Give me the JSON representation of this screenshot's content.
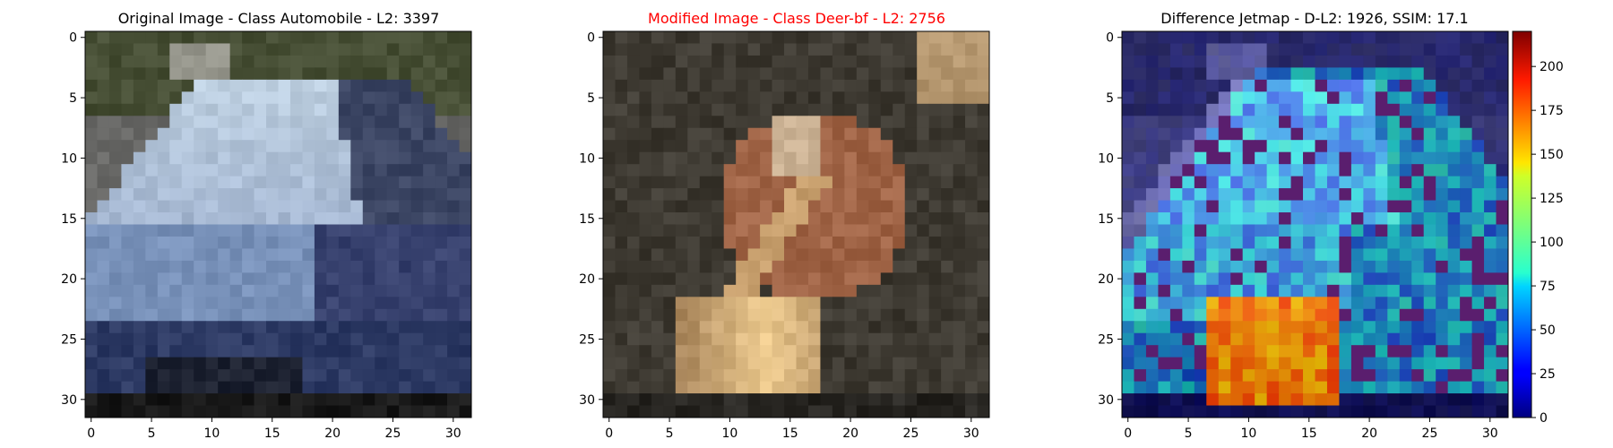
{
  "chart_data": {
    "type": "heatmap",
    "panels": [
      {
        "kind": "image",
        "title": "Original Image - Class Automobile - L2: 3397",
        "title_color": "#000000",
        "image_size": [
          32,
          32
        ],
        "x_ticks": [
          0,
          5,
          10,
          15,
          20,
          25,
          30
        ],
        "y_ticks": [
          0,
          5,
          10,
          15,
          20,
          25,
          30
        ],
        "subject": "blue-gray car, front three-quarter view, gray road background"
      },
      {
        "kind": "image",
        "title": "Modified Image - Class Deer-bf - L2: 2756",
        "title_color": "#ff0000",
        "image_size": [
          32,
          32
        ],
        "x_ticks": [
          0,
          5,
          10,
          15,
          20,
          25,
          30
        ],
        "y_ticks": [
          0,
          5,
          10,
          15,
          20,
          25,
          30
        ],
        "subject": "brown-tan blurred deer-like shape on dark background"
      },
      {
        "kind": "image",
        "title": "Difference Jetmap - D-L2: 1926, SSIM: 17.1",
        "title_color": "#000000",
        "image_size": [
          32,
          32
        ],
        "x_ticks": [
          0,
          5,
          10,
          15,
          20,
          25,
          30
        ],
        "y_ticks": [
          0,
          5,
          10,
          15,
          20,
          25,
          30
        ],
        "subject": "jet-colormap difference overlay, blue car region with orange lower patch",
        "colorbar": {
          "colormap": "jet",
          "range": [
            0,
            220
          ],
          "ticks": [
            0,
            25,
            50,
            75,
            100,
            125,
            150,
            175,
            200
          ]
        }
      }
    ]
  }
}
